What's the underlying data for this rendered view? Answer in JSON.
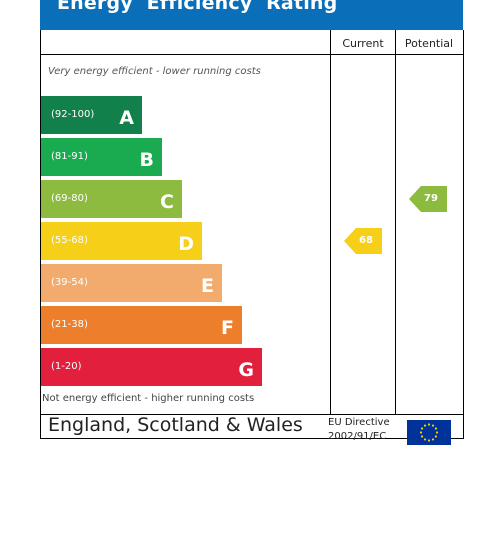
{
  "title": "Energy  Efficiency  Rating",
  "columns": {
    "current": "Current",
    "potential": "Potential"
  },
  "notes": {
    "top": "Very energy efficient - lower running costs",
    "bottom": "Not energy efficient - higher running costs"
  },
  "footer": {
    "region": "England, Scotland & Wales",
    "directive_line1": "EU Directive",
    "directive_line2": "2002/91/EC"
  },
  "chart_data": {
    "type": "bar",
    "categories": [
      "A",
      "B",
      "C",
      "D",
      "E",
      "F",
      "G"
    ],
    "bands": [
      {
        "letter": "A",
        "range": "(92-100)",
        "color": "#11804a"
      },
      {
        "letter": "B",
        "range": "(81-91)",
        "color": "#1aaa4f"
      },
      {
        "letter": "C",
        "range": "(69-80)",
        "color": "#8dbb3f"
      },
      {
        "letter": "D",
        "range": "(55-68)",
        "color": "#f5cf18"
      },
      {
        "letter": "E",
        "range": "(39-54)",
        "color": "#f2ab6c"
      },
      {
        "letter": "F",
        "range": "(21-38)",
        "color": "#ed7f2c"
      },
      {
        "letter": "G",
        "range": "(1-20)",
        "color": "#e21f3c"
      }
    ],
    "ratings": [
      {
        "column": "current",
        "value": 68,
        "label": "68",
        "band": "D",
        "color": "#f5cf18"
      },
      {
        "column": "potential",
        "value": 79,
        "label": "79",
        "band": "C",
        "color": "#8dbb3f"
      }
    ]
  }
}
